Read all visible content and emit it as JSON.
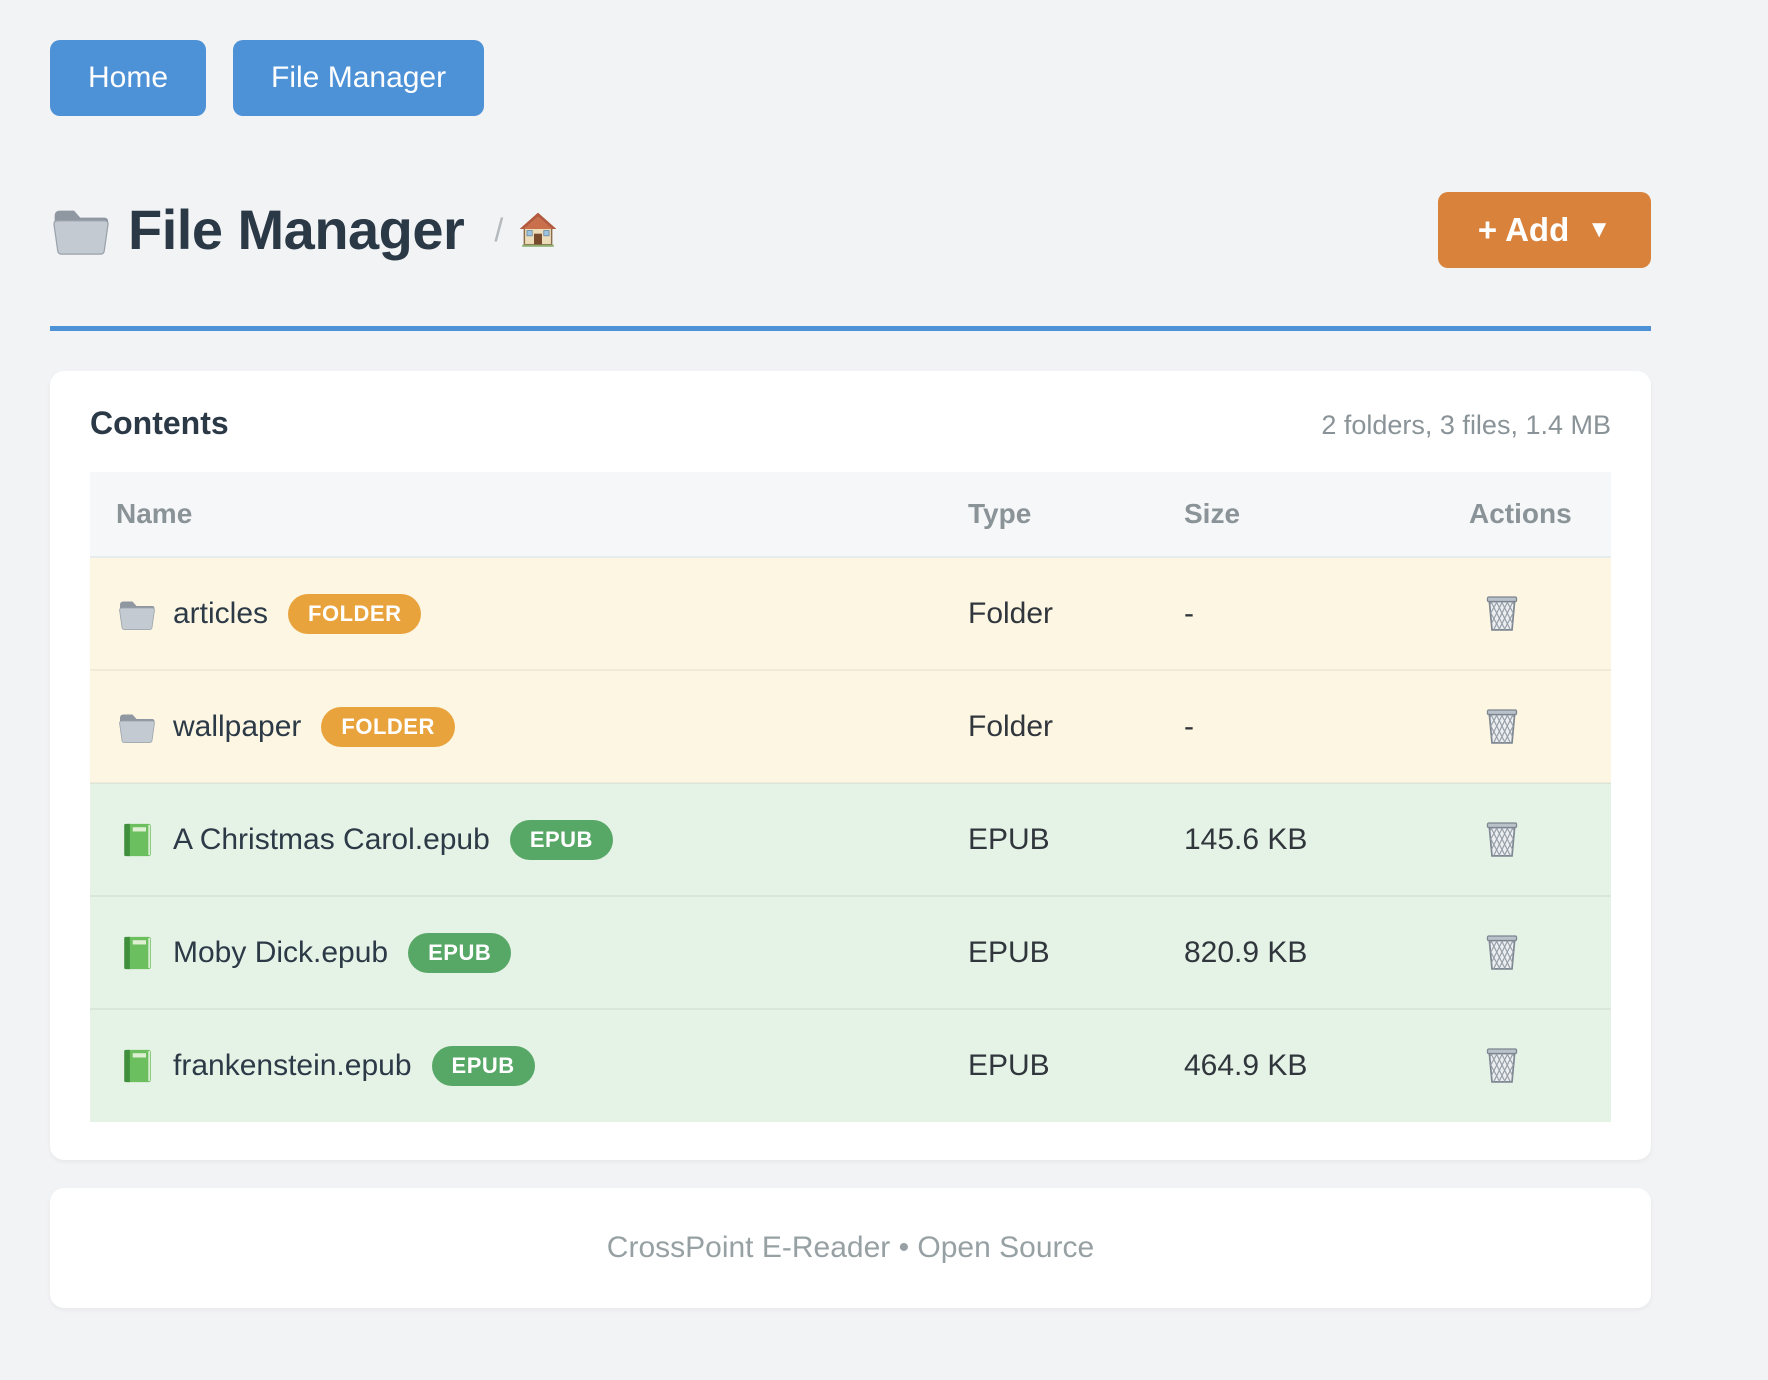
{
  "colors": {
    "accent-blue": "#4d91d6",
    "add-orange": "#d9823c",
    "folder-badge": "#e9a33d",
    "epub-badge": "#57a766",
    "folder-row-bg": "#fdf6e2",
    "epub-row-bg": "#e5f2e6",
    "header-row-bg": "#f6f7f8",
    "page-bg": "#f2f3f5",
    "card-bg": "#ffffff",
    "heading-text": "#2b3947",
    "muted-text": "#8a9398",
    "cell-text": "#30363c",
    "footer-text": "#97a1a4"
  },
  "nav": {
    "home_label": "Home",
    "file_manager_label": "File Manager"
  },
  "header": {
    "title": "File Manager",
    "breadcrumb_separator": "/",
    "add_button_label": "+ Add",
    "add_button_caret": "▼"
  },
  "contents": {
    "title": "Contents",
    "summary": "2 folders, 3 files, 1.4 MB",
    "table": {
      "columns": [
        "Name",
        "Type",
        "Size",
        "Actions"
      ],
      "rows": [
        {
          "name": "articles",
          "kind": "folder",
          "badge": "FOLDER",
          "type": "Folder",
          "size": "-"
        },
        {
          "name": "wallpaper",
          "kind": "folder",
          "badge": "FOLDER",
          "type": "Folder",
          "size": "-"
        },
        {
          "name": "A Christmas Carol.epub",
          "kind": "epub",
          "badge": "EPUB",
          "type": "EPUB",
          "size": "145.6 KB"
        },
        {
          "name": "Moby Dick.epub",
          "kind": "epub",
          "badge": "EPUB",
          "type": "EPUB",
          "size": "820.9 KB"
        },
        {
          "name": "frankenstein.epub",
          "kind": "epub",
          "badge": "EPUB",
          "type": "EPUB",
          "size": "464.9 KB"
        }
      ]
    }
  },
  "footer": {
    "text": "CrossPoint E-Reader • Open Source"
  }
}
